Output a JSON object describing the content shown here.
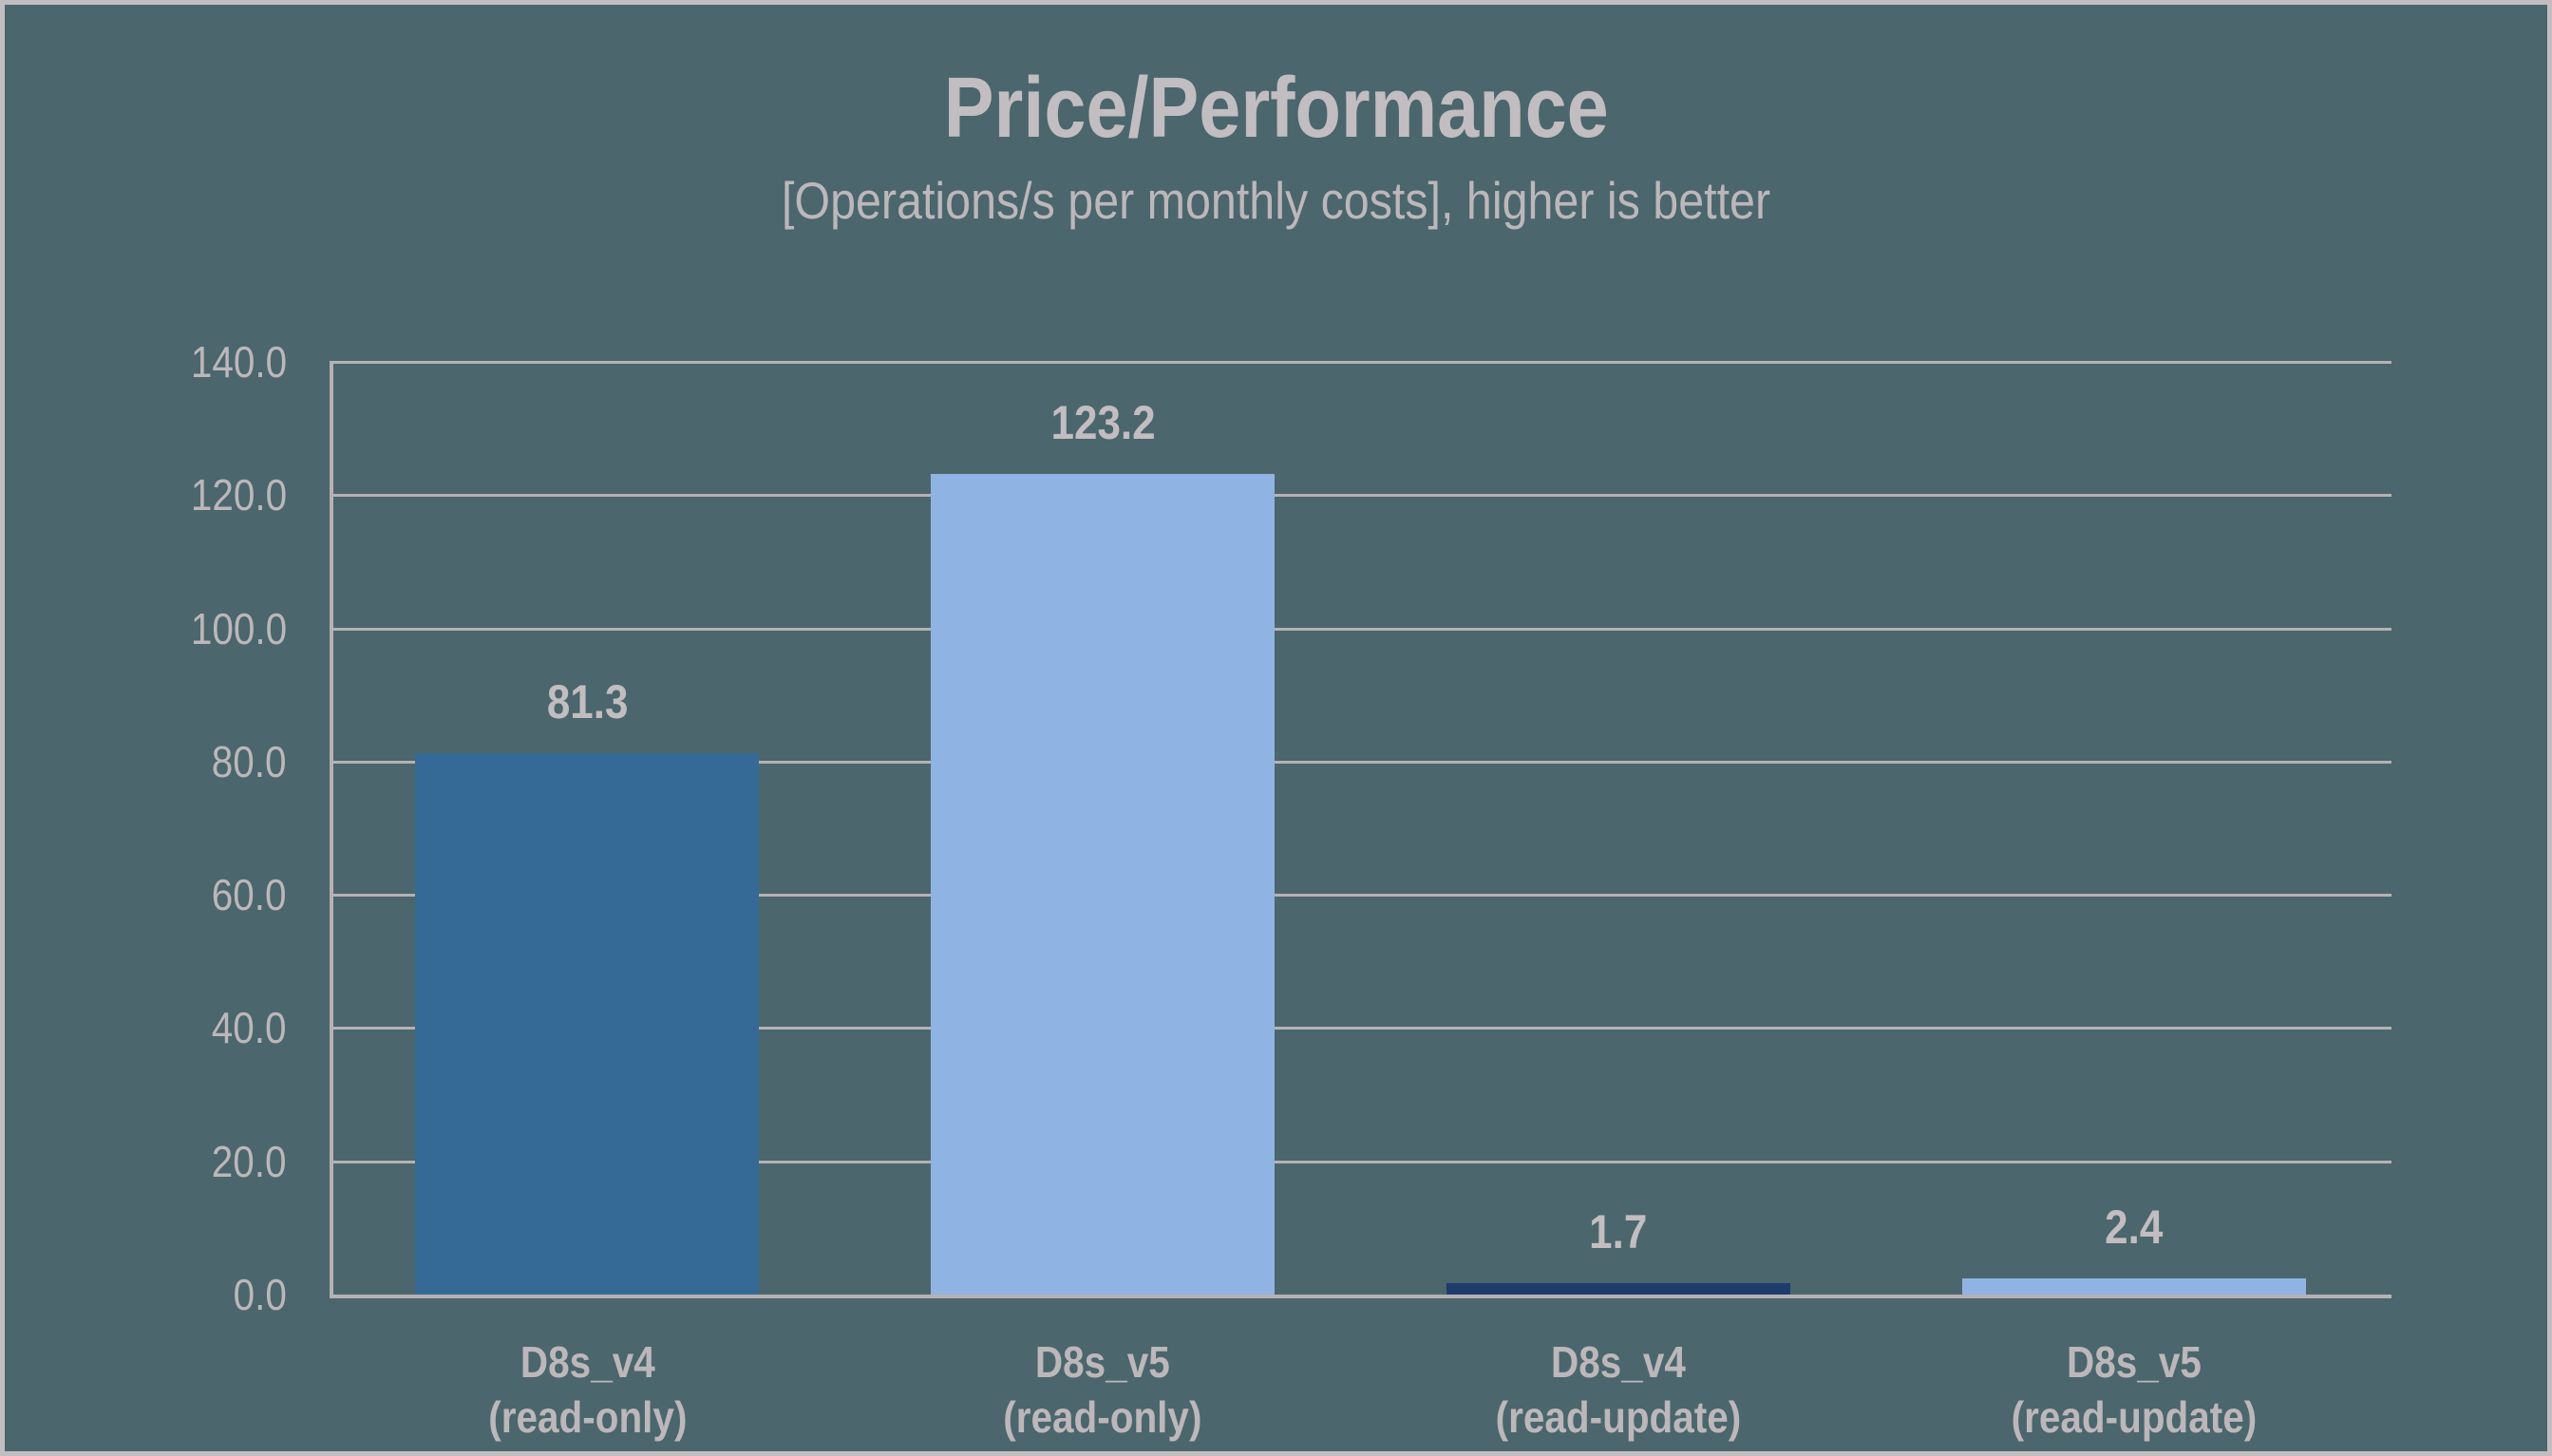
{
  "chart": {
    "title": "Price/Performance",
    "subtitle": "[Operations/s per monthly costs], higher is better"
  },
  "chart_data": {
    "type": "bar",
    "title": "Price/Performance",
    "subtitle": "[Operations/s per monthly costs], higher is better",
    "categories": [
      "D8s_v4\n(read-only)",
      "D8s_v5\n(read-only)",
      "D8s_v4\n(read-update)",
      "D8s_v5\n(read-update)"
    ],
    "values": [
      81.3,
      123.2,
      1.7,
      2.4
    ],
    "value_labels": [
      "81.3",
      "123.2",
      "1.7",
      "2.4"
    ],
    "bar_colors": [
      "#346a95",
      "#8fb3e2",
      "#1f3c6e",
      "#8fb3e2"
    ],
    "y_ticks": [
      "140.0",
      "120.0",
      "100.0",
      "80.0",
      "60.0",
      "40.0",
      "20.0",
      "0.0"
    ],
    "ylim": [
      0,
      140
    ],
    "xlabel": "",
    "ylabel": "",
    "grid": true,
    "legend": false
  },
  "colors": {
    "background": "#4b666d",
    "frame_border": "#c2bec0",
    "gridline": "#b6b1b4",
    "axis_line": "#b6b1b4",
    "title_text": "#c1bdc0",
    "label_text": "#bcb7ba"
  }
}
